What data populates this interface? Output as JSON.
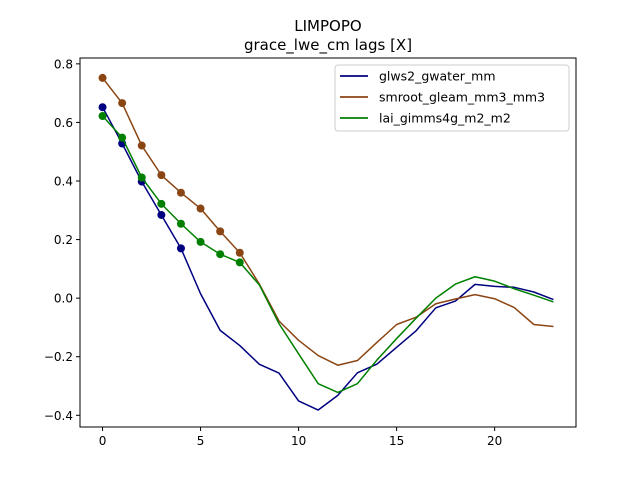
{
  "chart_data": {
    "type": "line",
    "title": "LIMPOPO",
    "subtitle": "grace_lwe_cm lags [X]",
    "xlabel": "",
    "ylabel": "",
    "xlim": [
      -1.15,
      24.15
    ],
    "ylim": [
      -0.44,
      0.82
    ],
    "x_ticks": [
      0,
      5,
      10,
      15,
      20
    ],
    "y_ticks": [
      -0.4,
      -0.2,
      0.0,
      0.2,
      0.4,
      0.6,
      0.8
    ],
    "y_tick_labels": [
      "−0.4",
      "−0.2",
      "0.0",
      "0.2",
      "0.4",
      "0.6",
      "0.8"
    ],
    "grid": false,
    "legend_position": "top-right",
    "series": [
      {
        "name": "glws2_gwater_mm",
        "color": "#000080",
        "x": [
          0,
          1,
          2,
          3,
          4,
          5,
          6,
          7,
          8,
          9,
          10,
          11,
          12,
          13,
          14,
          15,
          16,
          17,
          18,
          19,
          20,
          21,
          22,
          23
        ],
        "values": [
          0.652,
          0.528,
          0.398,
          0.284,
          0.17,
          0.015,
          -0.11,
          -0.162,
          -0.226,
          -0.256,
          -0.351,
          -0.382,
          -0.332,
          -0.255,
          -0.225,
          -0.168,
          -0.111,
          -0.033,
          -0.01,
          0.047,
          0.04,
          0.037,
          0.021,
          -0.005
        ],
        "markers_x": [
          0,
          1,
          2,
          3,
          4
        ]
      },
      {
        "name": "smroot_gleam_mm3_mm3",
        "color": "#8B4513",
        "x": [
          0,
          1,
          2,
          3,
          4,
          5,
          6,
          7,
          8,
          9,
          10,
          11,
          12,
          13,
          14,
          15,
          16,
          17,
          18,
          19,
          20,
          21,
          22,
          23
        ],
        "values": [
          0.752,
          0.666,
          0.521,
          0.42,
          0.36,
          0.306,
          0.228,
          0.155,
          0.048,
          -0.078,
          -0.144,
          -0.196,
          -0.229,
          -0.213,
          -0.151,
          -0.09,
          -0.065,
          -0.019,
          -0.003,
          0.012,
          -0.002,
          -0.032,
          -0.09,
          -0.097
        ],
        "markers_x": [
          0,
          1,
          2,
          3,
          4,
          5,
          6,
          7
        ]
      },
      {
        "name": "lai_gimms4g_m2_m2",
        "color": "#008000",
        "x": [
          0,
          1,
          2,
          3,
          4,
          5,
          6,
          7,
          8,
          9,
          10,
          11,
          12,
          13,
          14,
          15,
          16,
          17,
          18,
          19,
          20,
          21,
          22,
          23
        ],
        "values": [
          0.622,
          0.548,
          0.412,
          0.322,
          0.254,
          0.192,
          0.15,
          0.122,
          0.045,
          -0.087,
          -0.19,
          -0.292,
          -0.322,
          -0.292,
          -0.211,
          -0.138,
          -0.068,
          0.0,
          0.048,
          0.073,
          0.058,
          0.032,
          0.01,
          -0.013
        ],
        "markers_x": [
          0,
          1,
          2,
          3,
          4,
          5,
          6,
          7
        ]
      }
    ]
  }
}
